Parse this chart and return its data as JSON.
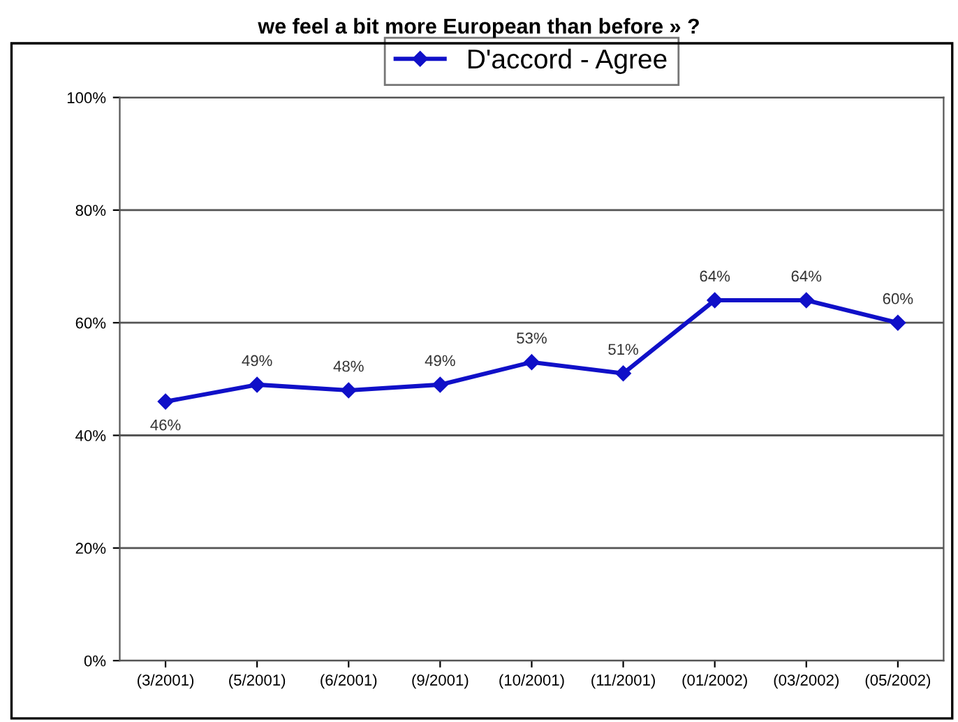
{
  "chart_data": {
    "type": "line",
    "title": "we feel a bit more European than before » ?",
    "categories": [
      "(3/2001)",
      "(5/2001)",
      "(6/2001)",
      "(9/2001)",
      "(10/2001)",
      "(11/2001)",
      "(01/2002)",
      "(03/2002)",
      "(05/2002)"
    ],
    "series": [
      {
        "name": "D'accord - Agree",
        "color": "#1010c8",
        "values": [
          46,
          49,
          48,
          49,
          53,
          51,
          64,
          64,
          60
        ],
        "value_labels": [
          "46%",
          "49%",
          "48%",
          "49%",
          "53%",
          "51%",
          "64%",
          "64%",
          "60%"
        ]
      }
    ],
    "ylim": [
      0,
      100
    ],
    "yticks": [
      {
        "value": 0,
        "label": "0%"
      },
      {
        "value": 20,
        "label": "20%"
      },
      {
        "value": 40,
        "label": "40%"
      },
      {
        "value": 60,
        "label": "60%"
      },
      {
        "value": 80,
        "label": "80%"
      },
      {
        "value": 100,
        "label": "100%"
      }
    ],
    "grid": "y",
    "legend": "top",
    "marker": "diamond",
    "line_style": "solid"
  }
}
